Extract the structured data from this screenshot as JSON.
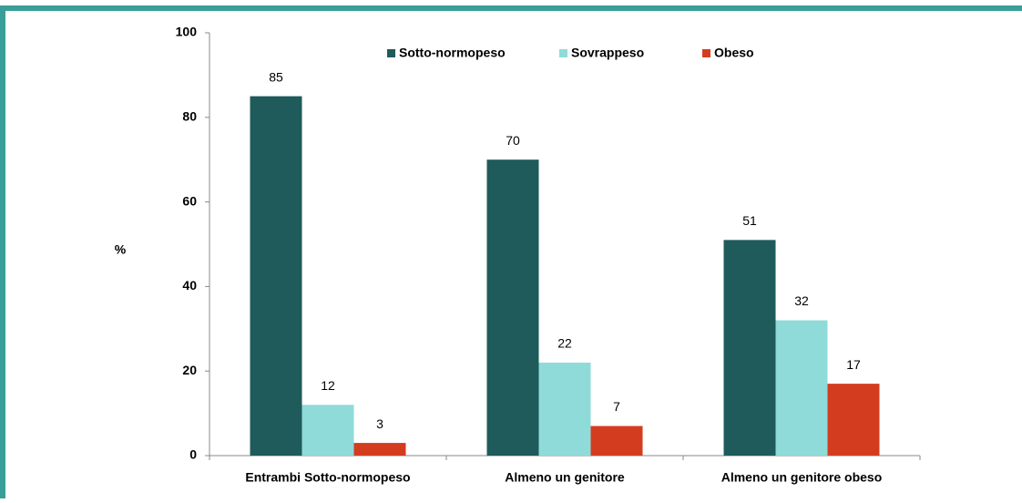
{
  "chart_data": {
    "type": "bar",
    "categories": [
      "Entrambi Sotto-normopeso",
      "Almeno un genitore",
      "Almeno un genitore obeso"
    ],
    "series": [
      {
        "name": "Sotto-normopeso",
        "color": "#1f5b5b",
        "values": [
          85,
          70,
          51
        ]
      },
      {
        "name": "Sovrappeso",
        "color": "#8fdbd9",
        "values": [
          12,
          22,
          32
        ]
      },
      {
        "name": "Obeso",
        "color": "#d43c1f",
        "values": [
          3,
          7,
          17
        ]
      }
    ],
    "ylabel": "%",
    "ylim": [
      0,
      100
    ],
    "yticks": [
      0,
      20,
      40,
      60,
      80,
      100
    ],
    "legend": "top"
  }
}
